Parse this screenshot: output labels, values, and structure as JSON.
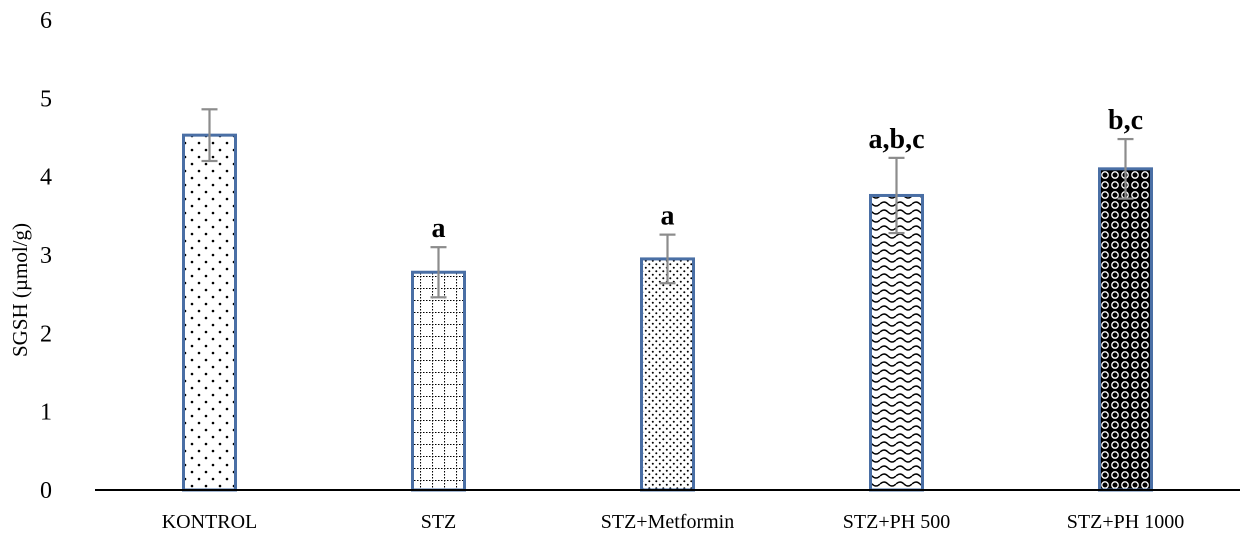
{
  "chart_data": {
    "type": "bar",
    "title": "",
    "xlabel": "",
    "ylabel": "SGSH (µmol/g)",
    "ylim": [
      0,
      6
    ],
    "yticks": [
      "0",
      "1",
      "2",
      "3",
      "4",
      "5",
      "6"
    ],
    "grid": false,
    "legend": "none",
    "categories": [
      "KONTROL",
      "STZ",
      "STZ+Metformin",
      "STZ+PH 500",
      "STZ+PH 1000"
    ],
    "values": [
      4.53,
      2.78,
      2.95,
      3.76,
      4.1
    ],
    "errors": [
      0.33,
      0.32,
      0.31,
      0.48,
      0.38
    ],
    "labels": [
      "",
      "a",
      "a",
      "a,b,c",
      "b,c"
    ],
    "patterns": [
      "sparse-dots",
      "dotted-grid",
      "fine-dots",
      "waves",
      "circles"
    ],
    "colors": {
      "bar_border": "#4a6fa5",
      "error_bar": "#8c8c8c",
      "axis": "#000000"
    }
  }
}
